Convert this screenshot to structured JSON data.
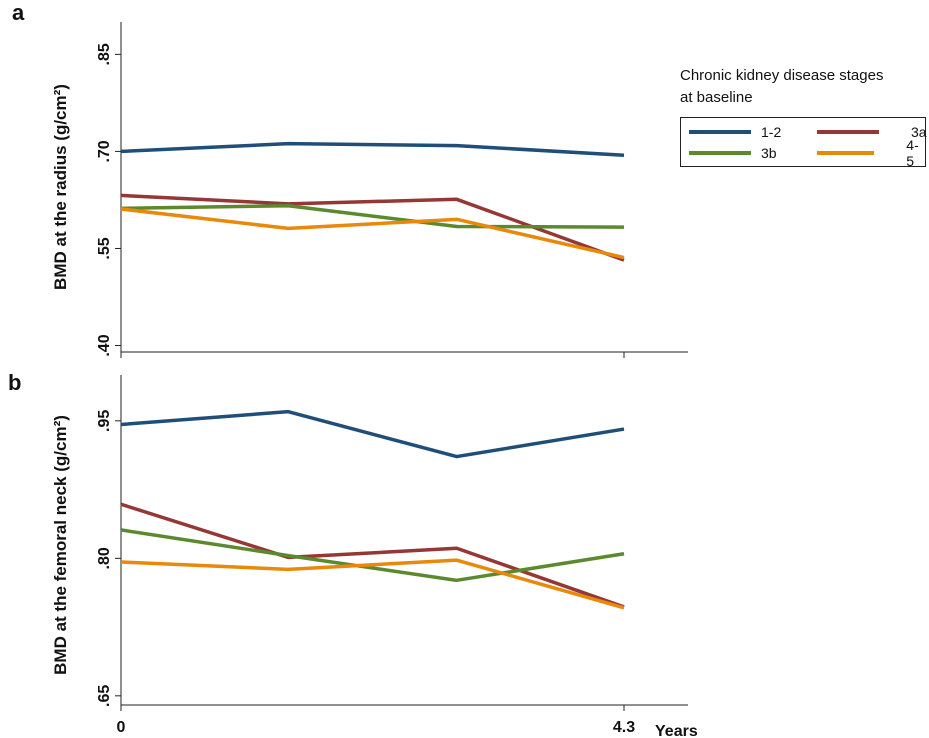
{
  "legend": {
    "title_line1": "Chronic kidney disease stages",
    "title_line2": "at baseline",
    "entries": [
      {
        "label": "1-2",
        "color": "#1f4e79"
      },
      {
        "label": "3a",
        "color": "#953735"
      },
      {
        "label": "3b",
        "color": "#5b8a2e"
      },
      {
        "label": "4-5",
        "color": "#e8890c"
      }
    ]
  },
  "chart_data": [
    {
      "type": "line",
      "panel_label": "a",
      "ylabel": "BMD at the radius (g/cm²)",
      "xlabel": "",
      "x": [
        0,
        1.43,
        2.87,
        4.3
      ],
      "xticks": [
        "0",
        "4.3"
      ],
      "yticks": [
        ".40",
        ".55",
        ".70",
        ".85"
      ],
      "ylim": [
        0.39,
        0.9
      ],
      "series": [
        {
          "name": "1-2",
          "color": "#1f4e79",
          "values": [
            0.7,
            0.712,
            0.709,
            0.694
          ]
        },
        {
          "name": "3a",
          "color": "#953735",
          "values": [
            0.632,
            0.619,
            0.626,
            0.532
          ]
        },
        {
          "name": "3b",
          "color": "#5b8a2e",
          "values": [
            0.612,
            0.616,
            0.584,
            0.583
          ]
        },
        {
          "name": "4-5",
          "color": "#e8890c",
          "values": [
            0.611,
            0.581,
            0.595,
            0.536
          ]
        }
      ]
    },
    {
      "type": "line",
      "panel_label": "b",
      "ylabel": "BMD at the femoral neck (g/cm²)",
      "xlabel": "Years",
      "x": [
        0,
        1.43,
        2.87,
        4.3
      ],
      "xticks": [
        "0",
        "4.3"
      ],
      "yticks": [
        ".65",
        ".80",
        ".95"
      ],
      "ylim": [
        0.64,
        1.0
      ],
      "series": [
        {
          "name": "1-2",
          "color": "#1f4e79",
          "values": [
            0.946,
            0.96,
            0.911,
            0.941
          ]
        },
        {
          "name": "3a",
          "color": "#953735",
          "values": [
            0.859,
            0.801,
            0.811,
            0.747
          ]
        },
        {
          "name": "3b",
          "color": "#5b8a2e",
          "values": [
            0.831,
            0.803,
            0.776,
            0.805
          ]
        },
        {
          "name": "4-5",
          "color": "#e8890c",
          "values": [
            0.796,
            0.788,
            0.798,
            0.746
          ]
        }
      ]
    }
  ]
}
